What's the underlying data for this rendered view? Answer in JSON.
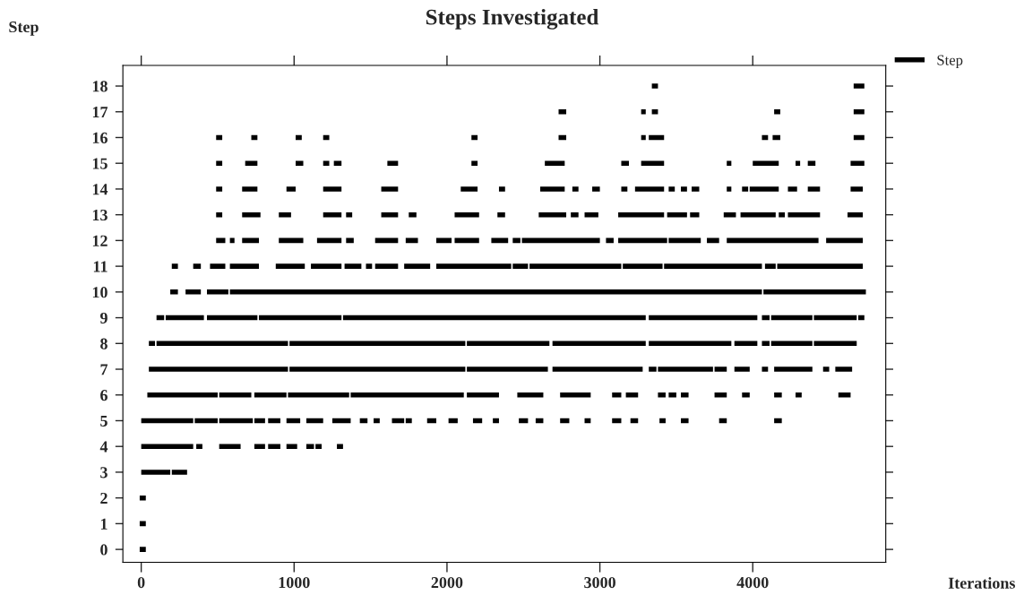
{
  "chart_data": {
    "type": "line",
    "title": "Steps Investigated",
    "xlabel": "Iterations",
    "ylabel": "Step",
    "xlim": [
      -120,
      4870
    ],
    "ylim": [
      -0.5,
      18.8
    ],
    "xticks": [
      0,
      1000,
      2000,
      3000,
      4000
    ],
    "yticks": [
      0,
      1,
      2,
      3,
      4,
      5,
      6,
      7,
      8,
      9,
      10,
      11,
      12,
      13,
      14,
      15,
      16,
      17,
      18
    ],
    "legend": "top right",
    "line_style": "solid",
    "series": [
      {
        "name": "Step",
        "color": "#000000",
        "x": [
          -10,
          30,
          null
        ],
        "values": [
          0,
          0,
          null
        ]
      },
      {
        "color": "#000000",
        "x": [
          -10,
          30,
          null
        ],
        "values": [
          1,
          1,
          null
        ]
      },
      {
        "color": "#000000",
        "x": [
          -10,
          30,
          null
        ],
        "values": [
          2,
          2,
          null
        ]
      },
      {
        "color": "#000000",
        "x": [
          0,
          190,
          null,
          200,
          300,
          null
        ],
        "values": [
          3,
          3,
          null,
          3,
          3,
          null
        ]
      },
      {
        "color": "#000000",
        "x": [
          0,
          340,
          null,
          360,
          400,
          null,
          510,
          650,
          null,
          740,
          810,
          null,
          830,
          910,
          null,
          950,
          1020,
          null,
          1080,
          1130,
          null,
          1140,
          1180,
          null,
          1280,
          1320,
          null
        ],
        "values": [
          4,
          4,
          null,
          4,
          4,
          null,
          4,
          4,
          null,
          4,
          4,
          null,
          4,
          4,
          null,
          4,
          4,
          null,
          4,
          4,
          null,
          4,
          4,
          null,
          4,
          4,
          null
        ]
      },
      {
        "color": "#000000",
        "x": [
          0,
          340,
          null,
          350,
          500,
          null,
          510,
          730,
          null,
          740,
          810,
          null,
          830,
          910,
          null,
          950,
          1040,
          null,
          1080,
          1190,
          null,
          1250,
          1370,
          null,
          1430,
          1480,
          null,
          1520,
          1560,
          null,
          1640,
          1720,
          null,
          1730,
          1770,
          null,
          1870,
          1930,
          null,
          2010,
          2070,
          null,
          2170,
          2230,
          null,
          2300,
          2340,
          null,
          2470,
          2530,
          null,
          2580,
          2630,
          null,
          2740,
          2800,
          null,
          2900,
          2940,
          null,
          3080,
          3140,
          null,
          3200,
          3250,
          null,
          3390,
          3430,
          null,
          3530,
          3580,
          null,
          3780,
          3830,
          null,
          4140,
          4190,
          null
        ],
        "values": [
          5,
          5,
          null,
          5,
          5,
          null,
          5,
          5,
          null,
          5,
          5,
          null,
          5,
          5,
          null,
          5,
          5,
          null,
          5,
          5,
          null,
          5,
          5,
          null,
          5,
          5,
          null,
          5,
          5,
          null,
          5,
          5,
          null,
          5,
          5,
          null,
          5,
          5,
          null,
          5,
          5,
          null,
          5,
          5,
          null,
          5,
          5,
          null,
          5,
          5,
          null,
          5,
          5,
          null,
          5,
          5,
          null,
          5,
          5,
          null,
          5,
          5,
          null,
          5,
          5,
          null,
          5,
          5,
          null,
          5,
          5,
          null,
          5,
          5,
          null,
          5,
          5,
          null
        ]
      },
      {
        "color": "#000000",
        "x": [
          40,
          500,
          null,
          510,
          720,
          null,
          740,
          950,
          null,
          960,
          1360,
          null,
          1370,
          2110,
          null,
          2130,
          2340,
          null,
          2460,
          2630,
          null,
          2740,
          2940,
          null,
          3080,
          3140,
          null,
          3170,
          3250,
          null,
          3380,
          3430,
          null,
          3450,
          3500,
          null,
          3530,
          3580,
          null,
          3750,
          3830,
          null,
          3930,
          3980,
          null,
          4140,
          4190,
          null,
          4280,
          4320,
          null,
          4560,
          4640,
          null
        ],
        "values": [
          6,
          6,
          null,
          6,
          6,
          null,
          6,
          6,
          null,
          6,
          6,
          null,
          6,
          6,
          null,
          6,
          6,
          null,
          6,
          6,
          null,
          6,
          6,
          null,
          6,
          6,
          null,
          6,
          6,
          null,
          6,
          6,
          null,
          6,
          6,
          null,
          6,
          6,
          null,
          6,
          6,
          null,
          6,
          6,
          null,
          6,
          6,
          null,
          6,
          6,
          null,
          6,
          6,
          null
        ]
      },
      {
        "color": "#000000",
        "x": [
          50,
          960,
          null,
          970,
          2120,
          null,
          2130,
          2660,
          null,
          2690,
          3280,
          null,
          3320,
          3370,
          null,
          3380,
          3740,
          null,
          3750,
          3830,
          null,
          3880,
          3980,
          null,
          4060,
          4100,
          null,
          4140,
          4390,
          null,
          4460,
          4500,
          null,
          4540,
          4650,
          null
        ],
        "values": [
          7,
          7,
          null,
          7,
          7,
          null,
          7,
          7,
          null,
          7,
          7,
          null,
          7,
          7,
          null,
          7,
          7,
          null,
          7,
          7,
          null,
          7,
          7,
          null,
          7,
          7,
          null,
          7,
          7,
          null,
          7,
          7,
          null,
          7,
          7,
          null
        ]
      },
      {
        "color": "#000000",
        "x": [
          50,
          90,
          null,
          100,
          960,
          null,
          970,
          2120,
          null,
          2130,
          2670,
          null,
          2690,
          3300,
          null,
          3320,
          3860,
          null,
          3880,
          4030,
          null,
          4060,
          4110,
          null,
          4120,
          4390,
          null,
          4400,
          4680,
          null
        ],
        "values": [
          8,
          8,
          null,
          8,
          8,
          null,
          8,
          8,
          null,
          8,
          8,
          null,
          8,
          8,
          null,
          8,
          8,
          null,
          8,
          8,
          null,
          8,
          8,
          null,
          8,
          8,
          null,
          8,
          8,
          null
        ]
      },
      {
        "color": "#000000",
        "x": [
          100,
          150,
          null,
          160,
          410,
          null,
          430,
          760,
          null,
          770,
          1310,
          null,
          1320,
          3300,
          null,
          3320,
          4030,
          null,
          4060,
          4110,
          null,
          4120,
          4390,
          null,
          4400,
          4680,
          null,
          4690,
          4730,
          null
        ],
        "values": [
          9,
          9,
          null,
          9,
          9,
          null,
          9,
          9,
          null,
          9,
          9,
          null,
          9,
          9,
          null,
          9,
          9,
          null,
          9,
          9,
          null,
          9,
          9,
          null,
          9,
          9,
          null,
          9,
          9,
          null
        ]
      },
      {
        "color": "#000000",
        "x": [
          190,
          240,
          null,
          290,
          390,
          null,
          430,
          570,
          null,
          580,
          4060,
          null,
          4070,
          4740,
          null
        ],
        "values": [
          10,
          10,
          null,
          10,
          10,
          null,
          10,
          10,
          null,
          10,
          10,
          null,
          10,
          10,
          null
        ]
      },
      {
        "color": "#000000",
        "x": [
          200,
          240,
          null,
          340,
          390,
          null,
          450,
          550,
          null,
          580,
          770,
          null,
          880,
          1070,
          null,
          1110,
          1310,
          null,
          1330,
          1440,
          null,
          1470,
          1510,
          null,
          1530,
          1680,
          null,
          1720,
          1890,
          null,
          1930,
          2420,
          null,
          2430,
          2530,
          null,
          2540,
          3140,
          null,
          3150,
          3410,
          null,
          3420,
          4060,
          null,
          4080,
          4150,
          null,
          4160,
          4720,
          null
        ],
        "values": [
          11,
          11,
          null,
          11,
          11,
          null,
          11,
          11,
          null,
          11,
          11,
          null,
          11,
          11,
          null,
          11,
          11,
          null,
          11,
          11,
          null,
          11,
          11,
          null,
          11,
          11,
          null,
          11,
          11,
          null,
          11,
          11,
          null,
          11,
          11,
          null,
          11,
          11,
          null,
          11,
          11,
          null,
          11,
          11,
          null,
          11,
          11,
          null,
          11,
          11,
          null
        ]
      },
      {
        "color": "#000000",
        "x": [
          490,
          550,
          null,
          580,
          610,
          null,
          660,
          770,
          null,
          900,
          1060,
          null,
          1150,
          1310,
          null,
          1340,
          1390,
          null,
          1530,
          1680,
          null,
          1730,
          1810,
          null,
          1930,
          2030,
          null,
          2050,
          2210,
          null,
          2290,
          2400,
          null,
          2430,
          2480,
          null,
          2490,
          3000,
          null,
          3040,
          3090,
          null,
          3120,
          3440,
          null,
          3450,
          3660,
          null,
          3700,
          3780,
          null,
          3830,
          4430,
          null,
          4480,
          4720,
          null
        ],
        "values": [
          12,
          12,
          null,
          12,
          12,
          null,
          12,
          12,
          null,
          12,
          12,
          null,
          12,
          12,
          null,
          12,
          12,
          null,
          12,
          12,
          null,
          12,
          12,
          null,
          12,
          12,
          null,
          12,
          12,
          null,
          12,
          12,
          null,
          12,
          12,
          null,
          12,
          12,
          null,
          12,
          12,
          null,
          12,
          12,
          null,
          12,
          12,
          null,
          12,
          12,
          null,
          12,
          12,
          null,
          12,
          12,
          null
        ]
      },
      {
        "color": "#000000",
        "x": [
          490,
          530,
          null,
          660,
          780,
          null,
          900,
          980,
          null,
          1190,
          1310,
          null,
          1340,
          1380,
          null,
          1570,
          1680,
          null,
          1750,
          1800,
          null,
          2050,
          2210,
          null,
          2330,
          2380,
          null,
          2600,
          2780,
          null,
          2810,
          2860,
          null,
          2900,
          2990,
          null,
          3120,
          3420,
          null,
          3440,
          3570,
          null,
          3590,
          3650,
          null,
          3810,
          3890,
          null,
          3920,
          4150,
          null,
          4170,
          4210,
          null,
          4230,
          4440,
          null,
          4620,
          4720,
          null
        ],
        "values": [
          13,
          13,
          null,
          13,
          13,
          null,
          13,
          13,
          null,
          13,
          13,
          null,
          13,
          13,
          null,
          13,
          13,
          null,
          13,
          13,
          null,
          13,
          13,
          null,
          13,
          13,
          null,
          13,
          13,
          null,
          13,
          13,
          null,
          13,
          13,
          null,
          13,
          13,
          null,
          13,
          13,
          null,
          13,
          13,
          null,
          13,
          13,
          null,
          13,
          13,
          null,
          13,
          13,
          null,
          13,
          13,
          null,
          13,
          13,
          null
        ]
      },
      {
        "color": "#000000",
        "x": [
          490,
          530,
          null,
          660,
          760,
          null,
          950,
          1010,
          null,
          1190,
          1310,
          null,
          1570,
          1680,
          null,
          2090,
          2200,
          null,
          2340,
          2380,
          null,
          2610,
          2770,
          null,
          2820,
          2860,
          null,
          2950,
          3000,
          null,
          3140,
          3180,
          null,
          3230,
          3420,
          null,
          3450,
          3490,
          null,
          3530,
          3570,
          null,
          3600,
          3650,
          null,
          3830,
          3860,
          null,
          3930,
          3970,
          null,
          3980,
          4170,
          null,
          4230,
          4290,
          null,
          4360,
          4440,
          null,
          4640,
          4720,
          null
        ],
        "values": [
          14,
          14,
          null,
          14,
          14,
          null,
          14,
          14,
          null,
          14,
          14,
          null,
          14,
          14,
          null,
          14,
          14,
          null,
          14,
          14,
          null,
          14,
          14,
          null,
          14,
          14,
          null,
          14,
          14,
          null,
          14,
          14,
          null,
          14,
          14,
          null,
          14,
          14,
          null,
          14,
          14,
          null,
          14,
          14,
          null,
          14,
          14,
          null,
          14,
          14,
          null,
          14,
          14,
          null,
          14,
          14,
          null,
          14,
          14,
          null,
          14,
          14,
          null
        ]
      },
      {
        "color": "#000000",
        "x": [
          490,
          530,
          null,
          680,
          760,
          null,
          1010,
          1060,
          null,
          1190,
          1230,
          null,
          1260,
          1310,
          null,
          1610,
          1680,
          null,
          2160,
          2200,
          null,
          2640,
          2770,
          null,
          3140,
          3190,
          null,
          3270,
          3420,
          null,
          3830,
          3860,
          null,
          4000,
          4170,
          null,
          4280,
          4310,
          null,
          4360,
          4410,
          null,
          4640,
          4730,
          null
        ],
        "values": [
          15,
          15,
          null,
          15,
          15,
          null,
          15,
          15,
          null,
          15,
          15,
          null,
          15,
          15,
          null,
          15,
          15,
          null,
          15,
          15,
          null,
          15,
          15,
          null,
          15,
          15,
          null,
          15,
          15,
          null,
          15,
          15,
          null,
          15,
          15,
          null,
          15,
          15,
          null,
          15,
          15,
          null,
          15,
          15,
          null
        ]
      },
      {
        "color": "#000000",
        "x": [
          490,
          530,
          null,
          720,
          760,
          null,
          1010,
          1050,
          null,
          1190,
          1230,
          null,
          2160,
          2200,
          null,
          2730,
          2780,
          null,
          3270,
          3300,
          null,
          3320,
          3420,
          null,
          4060,
          4100,
          null,
          4130,
          4180,
          null,
          4660,
          4730,
          null
        ],
        "values": [
          16,
          16,
          null,
          16,
          16,
          null,
          16,
          16,
          null,
          16,
          16,
          null,
          16,
          16,
          null,
          16,
          16,
          null,
          16,
          16,
          null,
          16,
          16,
          null,
          16,
          16,
          null,
          16,
          16,
          null,
          16,
          16,
          null
        ]
      },
      {
        "color": "#000000",
        "x": [
          2730,
          2780,
          null,
          3270,
          3300,
          null,
          3340,
          3380,
          null,
          4140,
          4180,
          null,
          4660,
          4730,
          null
        ],
        "values": [
          17,
          17,
          null,
          17,
          17,
          null,
          17,
          17,
          null,
          17,
          17,
          null,
          17,
          17,
          null
        ]
      },
      {
        "color": "#000000",
        "x": [
          3340,
          3380,
          null,
          4660,
          4730,
          null
        ],
        "values": [
          18,
          18,
          null,
          18,
          18,
          null
        ]
      }
    ]
  }
}
